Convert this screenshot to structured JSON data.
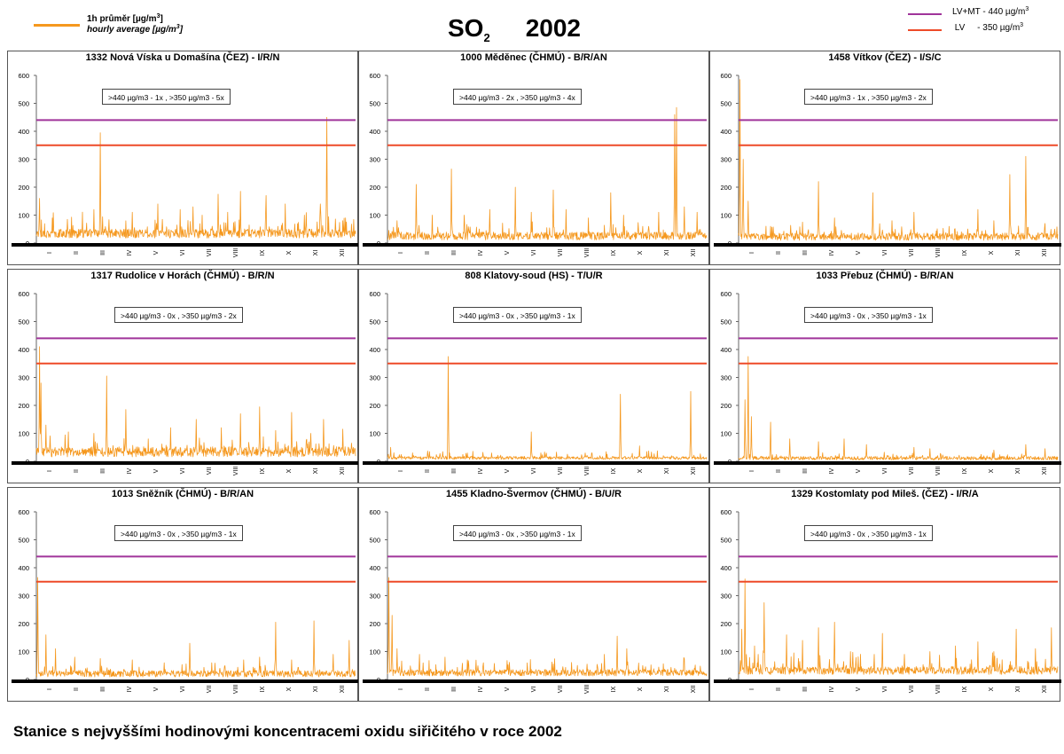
{
  "header": {
    "legend_hourly_cz": "1h průměr [µg/m",
    "legend_hourly_en": "hourly average [µg/m",
    "legend_hourly_color": "#f5981e",
    "title_so": "SO",
    "title_sub": "2",
    "title_year": "2002",
    "legend_lvmt_label": "LV+MT - 440 µg/m",
    "legend_lvmt_color": "#a0349a",
    "legend_lv_label": " LV     - 350 µg/m",
    "legend_lv_color": "#ee4a28",
    "sup3": "3"
  },
  "footer": "Stanice s nejvyššími hodinovými koncentracemi oxidu siřičitého v roce 2002",
  "chart_data": [
    {
      "type": "line",
      "title": "1332 Nová Víska u Domašína (ČEZ) - I/R/N",
      "count_label": ">440 µg/m3 - 1x  ,  >350 µg/m3 - 5x",
      "ylim": [
        0,
        600
      ],
      "yticks": [
        0,
        100,
        200,
        300,
        400,
        500,
        600
      ],
      "months": [
        "I",
        "II",
        "III",
        "IV",
        "V",
        "VI",
        "VII",
        "VIII",
        "IX",
        "X",
        "XI",
        "XII"
      ],
      "thresholds": [
        440,
        350
      ],
      "series": [
        {
          "base": 40,
          "noise": 25,
          "peaks": [
            [
              0.01,
              160
            ],
            [
              0.05,
              90
            ],
            [
              0.2,
              395
            ],
            [
              0.18,
              120
            ],
            [
              0.3,
              110
            ],
            [
              0.38,
              140
            ],
            [
              0.45,
              120
            ],
            [
              0.49,
              130
            ],
            [
              0.52,
              100
            ],
            [
              0.57,
              175
            ],
            [
              0.6,
              110
            ],
            [
              0.64,
              185
            ],
            [
              0.72,
              170
            ],
            [
              0.78,
              140
            ],
            [
              0.84,
              100
            ],
            [
              0.89,
              140
            ],
            [
              0.91,
              450
            ],
            [
              0.96,
              80
            ]
          ]
        }
      ]
    },
    {
      "type": "line",
      "title": "1000 Měděnec (ČHMÚ) - B/R/AN",
      "count_label": ">440 µg/m3 - 2x  ,  >350 µg/m3 - 4x",
      "ylim": [
        0,
        600
      ],
      "yticks": [
        0,
        100,
        200,
        300,
        400,
        500,
        600
      ],
      "months": [
        "I",
        "II",
        "III",
        "IV",
        "V",
        "VI",
        "VII",
        "VIII",
        "IX",
        "X",
        "XI",
        "XII"
      ],
      "thresholds": [
        440,
        350
      ],
      "series": [
        {
          "base": 25,
          "noise": 22,
          "peaks": [
            [
              0.03,
              80
            ],
            [
              0.09,
              210
            ],
            [
              0.14,
              100
            ],
            [
              0.2,
              265
            ],
            [
              0.24,
              100
            ],
            [
              0.32,
              120
            ],
            [
              0.4,
              200
            ],
            [
              0.45,
              110
            ],
            [
              0.52,
              190
            ],
            [
              0.56,
              120
            ],
            [
              0.63,
              90
            ],
            [
              0.7,
              180
            ],
            [
              0.74,
              100
            ],
            [
              0.8,
              60
            ],
            [
              0.85,
              110
            ],
            [
              0.9,
              460
            ],
            [
              0.905,
              485
            ],
            [
              0.93,
              130
            ],
            [
              0.97,
              110
            ]
          ]
        }
      ]
    },
    {
      "type": "line",
      "title": "1458 Vítkov (ČEZ) - I/S/C",
      "count_label": ">440 µg/m3 - 1x  ,  >350 µg/m3 - 2x",
      "ylim": [
        0,
        600
      ],
      "yticks": [
        0,
        100,
        200,
        300,
        400,
        500,
        600
      ],
      "months": [
        "I",
        "II",
        "III",
        "IV",
        "V",
        "VI",
        "VII",
        "VIII",
        "IX",
        "X",
        "XI",
        "XII"
      ],
      "thresholds": [
        440,
        350
      ],
      "series": [
        {
          "base": 22,
          "noise": 20,
          "peaks": [
            [
              0.005,
              585
            ],
            [
              0.015,
              300
            ],
            [
              0.03,
              150
            ],
            [
              0.1,
              60
            ],
            [
              0.2,
              75
            ],
            [
              0.25,
              220
            ],
            [
              0.3,
              90
            ],
            [
              0.42,
              180
            ],
            [
              0.48,
              80
            ],
            [
              0.55,
              110
            ],
            [
              0.66,
              60
            ],
            [
              0.75,
              120
            ],
            [
              0.8,
              80
            ],
            [
              0.85,
              245
            ],
            [
              0.9,
              310
            ],
            [
              0.96,
              70
            ],
            [
              0.99,
              50
            ]
          ]
        }
      ]
    },
    {
      "type": "line",
      "title": "1317 Rudolice v Horách (ČHMÚ) - B/R/N",
      "count_label": ">440 µg/m3 - 0x  ,  >350 µg/m3 - 2x",
      "ylim": [
        0,
        600
      ],
      "yticks": [
        0,
        100,
        200,
        300,
        400,
        500,
        600
      ],
      "months": [
        "I",
        "II",
        "III",
        "IV",
        "V",
        "VI",
        "VII",
        "VIII",
        "IX",
        "X",
        "XI",
        "XII"
      ],
      "thresholds": [
        440,
        350
      ],
      "series": [
        {
          "base": 35,
          "noise": 28,
          "peaks": [
            [
              0.01,
              410
            ],
            [
              0.015,
              280
            ],
            [
              0.03,
              130
            ],
            [
              0.1,
              105
            ],
            [
              0.18,
              100
            ],
            [
              0.22,
              305
            ],
            [
              0.28,
              185
            ],
            [
              0.35,
              80
            ],
            [
              0.42,
              120
            ],
            [
              0.5,
              150
            ],
            [
              0.58,
              120
            ],
            [
              0.64,
              170
            ],
            [
              0.7,
              195
            ],
            [
              0.75,
              110
            ],
            [
              0.8,
              175
            ],
            [
              0.86,
              100
            ],
            [
              0.9,
              150
            ],
            [
              0.96,
              115
            ]
          ]
        }
      ]
    },
    {
      "type": "line",
      "title": "808 Klatovy-soud (HS) - T/U/R",
      "count_label": ">440 µg/m3 - 0x  ,  >350 µg/m3 - 1x",
      "ylim": [
        0,
        600
      ],
      "yticks": [
        0,
        100,
        200,
        300,
        400,
        500,
        600
      ],
      "months": [
        "I",
        "II",
        "III",
        "IV",
        "V",
        "VI",
        "VII",
        "VIII",
        "IX",
        "X",
        "XI",
        "XII"
      ],
      "thresholds": [
        440,
        350
      ],
      "series": [
        {
          "base": 15,
          "noise": 8,
          "peaks": [
            [
              0.01,
              50
            ],
            [
              0.19,
              375
            ],
            [
              0.25,
              30
            ],
            [
              0.45,
              105
            ],
            [
              0.62,
              30
            ],
            [
              0.73,
              240
            ],
            [
              0.79,
              55
            ],
            [
              0.95,
              250
            ]
          ]
        }
      ]
    },
    {
      "type": "line",
      "title": "1033 Přebuz (ČHMÚ) - B/R/AN",
      "count_label": ">440 µg/m3 - 0x  ,  >350 µg/m3 - 1x",
      "ylim": [
        0,
        600
      ],
      "yticks": [
        0,
        100,
        200,
        300,
        400,
        500,
        600
      ],
      "months": [
        "I",
        "II",
        "III",
        "IV",
        "V",
        "VI",
        "VII",
        "VIII",
        "IX",
        "X",
        "XI",
        "XII"
      ],
      "thresholds": [
        440,
        350
      ],
      "series": [
        {
          "base": 10,
          "noise": 10,
          "peaks": [
            [
              0.02,
              220
            ],
            [
              0.03,
              375
            ],
            [
              0.04,
              160
            ],
            [
              0.1,
              140
            ],
            [
              0.16,
              80
            ],
            [
              0.25,
              70
            ],
            [
              0.33,
              80
            ],
            [
              0.4,
              60
            ],
            [
              0.55,
              50
            ],
            [
              0.6,
              45
            ],
            [
              0.8,
              40
            ],
            [
              0.9,
              60
            ],
            [
              0.96,
              45
            ]
          ]
        }
      ]
    },
    {
      "type": "line",
      "title": "1013 Sněžník (ČHMÚ) - B/R/AN",
      "count_label": ">440 µg/m3 - 0x  ,  >350 µg/m3 - 1x",
      "ylim": [
        0,
        600
      ],
      "yticks": [
        0,
        100,
        200,
        300,
        400,
        500,
        600
      ],
      "months": [
        "I",
        "II",
        "III",
        "IV",
        "V",
        "VI",
        "VII",
        "VIII",
        "IX",
        "X",
        "XI",
        "XII"
      ],
      "thresholds": [
        440,
        350
      ],
      "series": [
        {
          "base": 20,
          "noise": 18,
          "peaks": [
            [
              0.005,
              365
            ],
            [
              0.03,
              160
            ],
            [
              0.06,
              110
            ],
            [
              0.12,
              80
            ],
            [
              0.2,
              75
            ],
            [
              0.3,
              70
            ],
            [
              0.4,
              60
            ],
            [
              0.48,
              130
            ],
            [
              0.55,
              60
            ],
            [
              0.65,
              70
            ],
            [
              0.7,
              80
            ],
            [
              0.75,
              205
            ],
            [
              0.8,
              70
            ],
            [
              0.87,
              210
            ],
            [
              0.93,
              90
            ],
            [
              0.98,
              140
            ]
          ]
        }
      ]
    },
    {
      "type": "line",
      "title": "1455 Kladno-Švermov (ČHMÚ) - B/U/R",
      "count_label": ">440 µg/m3 - 0x  ,  >350 µg/m3 - 1x",
      "ylim": [
        0,
        600
      ],
      "yticks": [
        0,
        100,
        200,
        300,
        400,
        500,
        600
      ],
      "months": [
        "I",
        "II",
        "III",
        "IV",
        "V",
        "VI",
        "VII",
        "VIII",
        "IX",
        "X",
        "XI",
        "XII"
      ],
      "thresholds": [
        440,
        350
      ],
      "series": [
        {
          "base": 28,
          "noise": 18,
          "peaks": [
            [
              0.005,
              365
            ],
            [
              0.015,
              230
            ],
            [
              0.03,
              110
            ],
            [
              0.1,
              90
            ],
            [
              0.18,
              80
            ],
            [
              0.25,
              70
            ],
            [
              0.3,
              60
            ],
            [
              0.68,
              90
            ],
            [
              0.72,
              155
            ],
            [
              0.75,
              110
            ],
            [
              0.8,
              50
            ],
            [
              0.9,
              40
            ]
          ]
        }
      ]
    },
    {
      "type": "line",
      "title": "1329 Kostomlaty pod Mileš. (ČEZ) - I/R/A",
      "count_label": ">440 µg/m3 - 0x  ,  >350 µg/m3 - 1x",
      "ylim": [
        0,
        600
      ],
      "yticks": [
        0,
        100,
        200,
        300,
        400,
        500,
        600
      ],
      "months": [
        "I",
        "II",
        "III",
        "IV",
        "V",
        "VI",
        "VII",
        "VIII",
        "IX",
        "X",
        "XI",
        "XII"
      ],
      "thresholds": [
        440,
        350
      ],
      "series": [
        {
          "base": 40,
          "noise": 22,
          "peaks": [
            [
              0.01,
              180
            ],
            [
              0.02,
              360
            ],
            [
              0.05,
              120
            ],
            [
              0.08,
              275
            ],
            [
              0.15,
              160
            ],
            [
              0.2,
              140
            ],
            [
              0.25,
              185
            ],
            [
              0.3,
              205
            ],
            [
              0.35,
              100
            ],
            [
              0.45,
              165
            ],
            [
              0.52,
              90
            ],
            [
              0.6,
              100
            ],
            [
              0.68,
              120
            ],
            [
              0.75,
              135
            ],
            [
              0.8,
              100
            ],
            [
              0.87,
              180
            ],
            [
              0.93,
              110
            ],
            [
              0.98,
              185
            ]
          ]
        }
      ]
    }
  ]
}
